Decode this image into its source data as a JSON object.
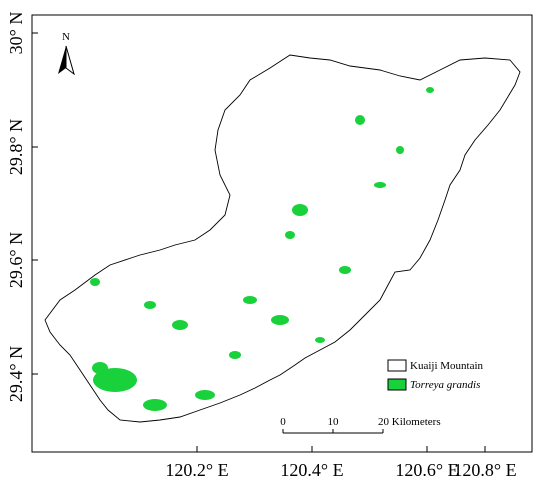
{
  "north_label": "N",
  "axes": {
    "y_labels": [
      "30° N",
      "29.8° N",
      "29.6° N",
      "29.4° N"
    ],
    "x_labels": [
      "120.2° E",
      "120.4° E",
      "120.6° E",
      "120.8° E"
    ]
  },
  "legend": {
    "items": [
      {
        "label": "Kuaiji Mountain"
      },
      {
        "label": "Torreya grandis"
      }
    ]
  },
  "scale_bar": {
    "labels": [
      "0",
      "10",
      "20 Kilometers"
    ]
  }
}
